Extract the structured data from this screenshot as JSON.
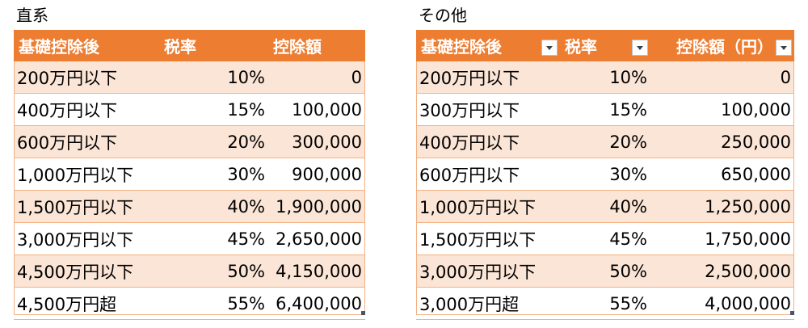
{
  "left": {
    "title": "直系",
    "headers": [
      "基礎控除後",
      "税率",
      "控除額"
    ],
    "rows": [
      [
        "200万円以下",
        "10%",
        "0"
      ],
      [
        "400万円以下",
        "15%",
        "100,000"
      ],
      [
        "600万円以下",
        "20%",
        "300,000"
      ],
      [
        "1,000万円以下",
        "30%",
        "900,000"
      ],
      [
        "1,500万円以下",
        "40%",
        "1,900,000"
      ],
      [
        "3,000万円以下",
        "45%",
        "2,650,000"
      ],
      [
        "4,500万円以下",
        "50%",
        "4,150,000"
      ],
      [
        "4,500万円超",
        "55%",
        "6,400,000"
      ]
    ]
  },
  "right": {
    "title": "その他",
    "headers": [
      "基礎控除後",
      "税率",
      "控除額（円）"
    ],
    "rows": [
      [
        "200万円以下",
        "10%",
        "0"
      ],
      [
        "300万円以下",
        "15%",
        "100,000"
      ],
      [
        "400万円以下",
        "20%",
        "250,000"
      ],
      [
        "600万円以下",
        "30%",
        "650,000"
      ],
      [
        "1,000万円以下",
        "40%",
        "1,250,000"
      ],
      [
        "1,500万円以下",
        "45%",
        "1,750,000"
      ],
      [
        "3,000万円以下",
        "50%",
        "2,500,000"
      ],
      [
        "3,000万円超",
        "55%",
        "4,000,000"
      ]
    ]
  },
  "colors": {
    "header_bg": "#ED7D31",
    "band_bg": "#FBE5D6",
    "border": "#F4B183"
  }
}
